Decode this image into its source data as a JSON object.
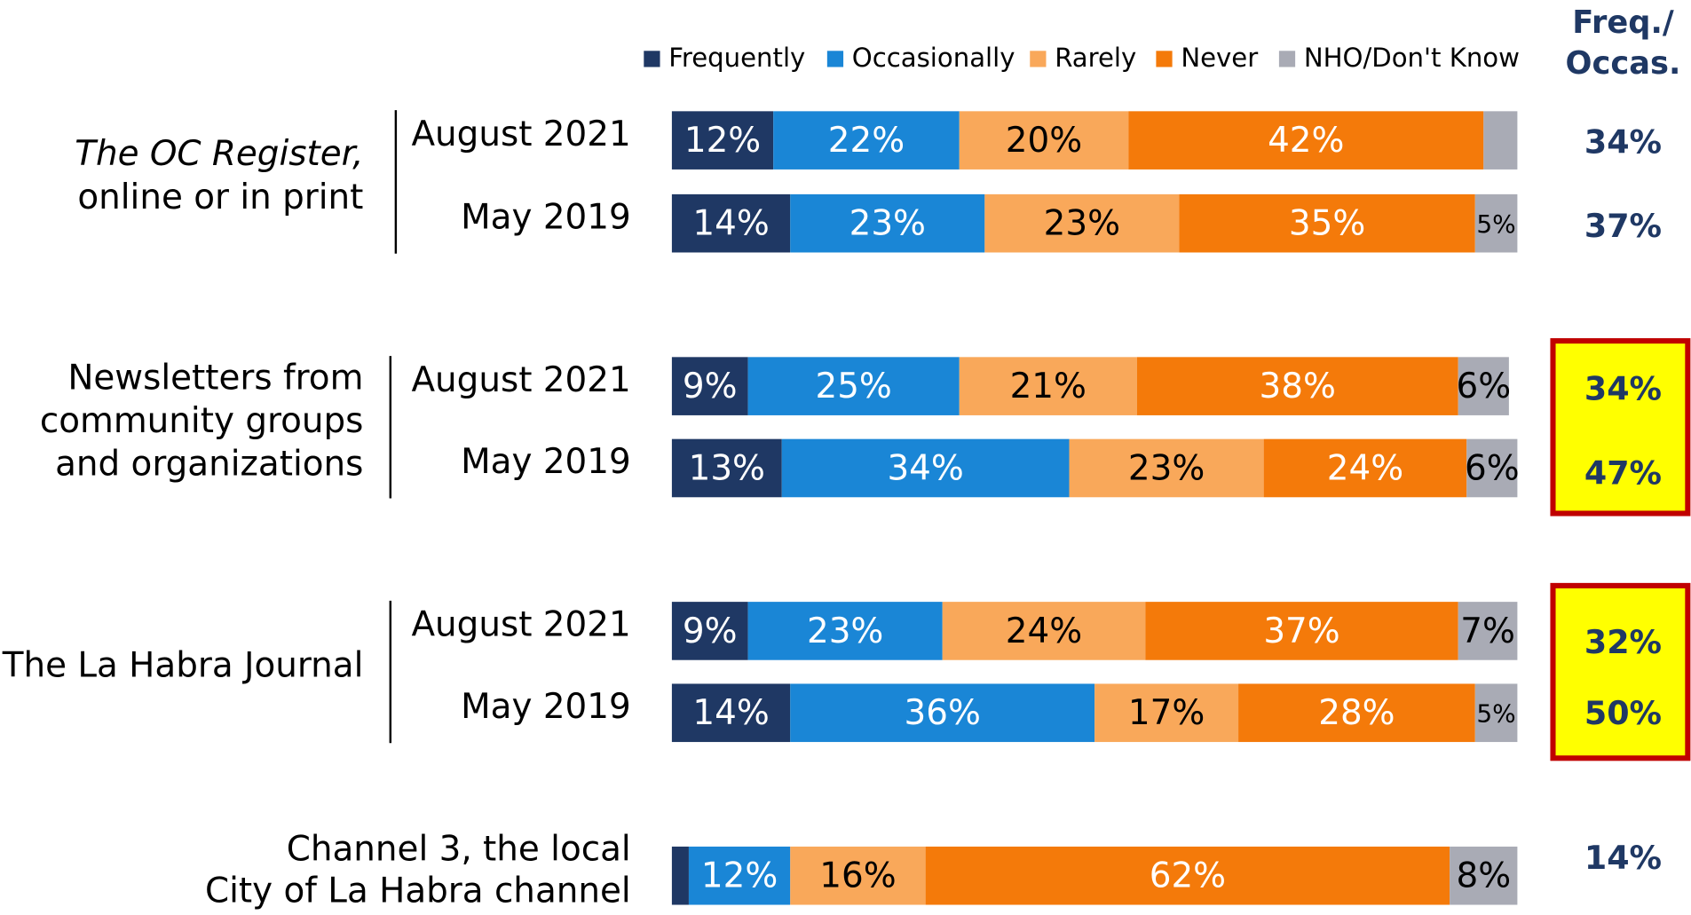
{
  "chart_data": {
    "type": "stacked-bar",
    "categories": [
      "August 2021",
      "May 2019",
      "August 2021",
      "May 2019",
      "August 2021",
      "May 2019",
      null
    ],
    "groups": [
      {
        "lines": [
          "The OC Register,",
          "online or in print"
        ],
        "highlight": false
      },
      {
        "lines": [
          "Newsletters from",
          "community groups",
          "and organizations"
        ],
        "highlight": true
      },
      {
        "lines": [
          "The La Habra Journal"
        ],
        "highlight": true
      },
      {
        "lines": [
          "Channel 3, the local",
          "City of La Habra channel"
        ],
        "highlight": false
      }
    ],
    "series": [
      {
        "name": "Frequently",
        "color": "#1f3864",
        "label_color": "#ffffff",
        "values": [
          12,
          14,
          9,
          13,
          9,
          14,
          2
        ],
        "value_labels": [
          "12%",
          "14%",
          "9%",
          "13%",
          "9%",
          "14%",
          null
        ]
      },
      {
        "name": "Occasionally",
        "color": "#1a86d6",
        "label_color": "#ffffff",
        "values": [
          22,
          23,
          25,
          34,
          23,
          36,
          12
        ],
        "value_labels": [
          "22%",
          "23%",
          "25%",
          "34%",
          "23%",
          "36%",
          "12%"
        ]
      },
      {
        "name": "Rarely",
        "color": "#f9a85a",
        "label_color": "#000000",
        "values": [
          20,
          23,
          21,
          23,
          24,
          17,
          16
        ],
        "value_labels": [
          "20%",
          "23%",
          "21%",
          "23%",
          "24%",
          "17%",
          "16%"
        ]
      },
      {
        "name": "Never",
        "color": "#f47a0a",
        "label_color": "#ffffff",
        "values": [
          42,
          35,
          38,
          24,
          37,
          28,
          62
        ],
        "value_labels": [
          "42%",
          "35%",
          "38%",
          "24%",
          "37%",
          "28%",
          "62%"
        ]
      },
      {
        "name": "NHO/Don't Know",
        "color": "#a9abb5",
        "label_color": "#000000",
        "values": [
          4,
          5,
          6,
          6,
          7,
          5,
          8
        ],
        "value_labels": [
          null,
          "5%",
          "6%",
          "6%",
          "7%",
          "5%",
          "8%"
        ]
      }
    ],
    "xlim": [
      0,
      100
    ],
    "freq_occas": {
      "title": [
        "Freq./",
        "Occas."
      ],
      "color": "#1f3864",
      "values": [
        34,
        37,
        34,
        47,
        32,
        50,
        14
      ],
      "value_labels": [
        "34%",
        "37%",
        "34%",
        "47%",
        "32%",
        "50%",
        "14%"
      ]
    }
  }
}
